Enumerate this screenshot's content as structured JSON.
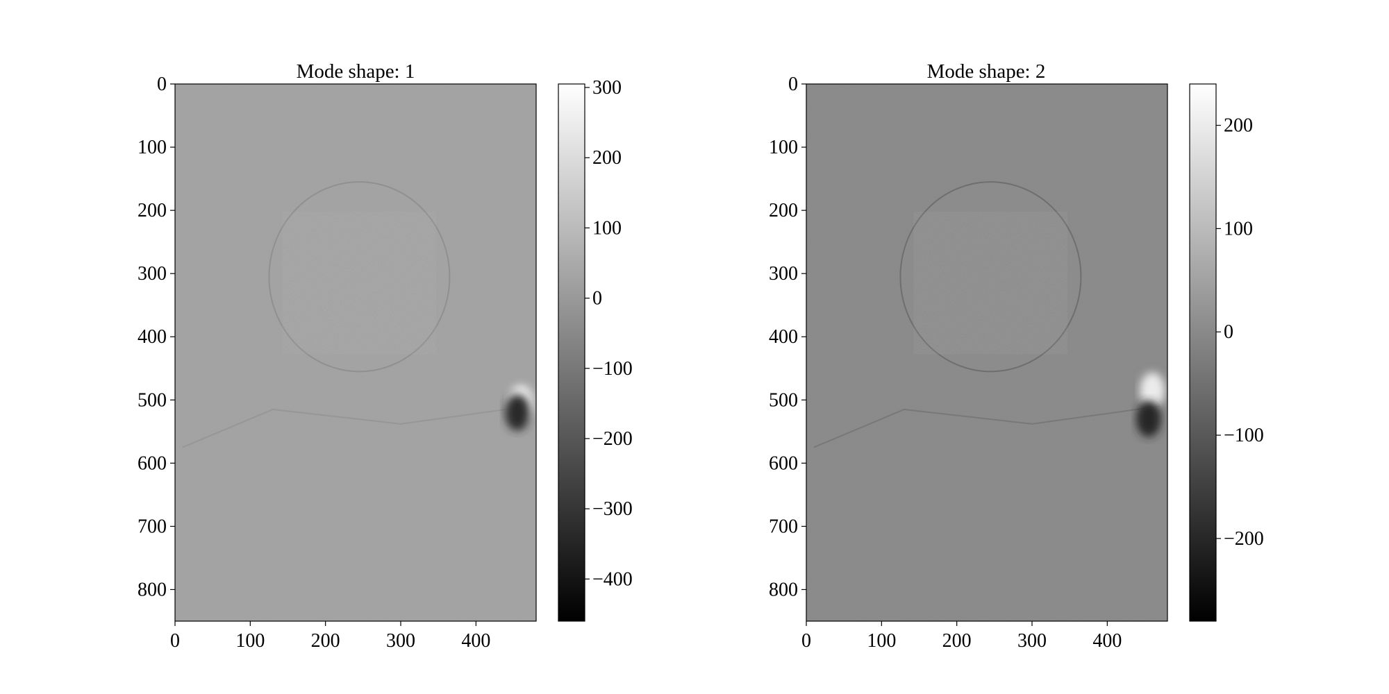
{
  "chart_data": [
    {
      "type": "heatmap",
      "title": "Mode shape: 1",
      "xlabel": "",
      "ylabel": "",
      "xlim": [
        0,
        480
      ],
      "ylim": [
        850,
        0
      ],
      "x_ticks": [
        0,
        100,
        200,
        300,
        400
      ],
      "y_ticks": [
        0,
        100,
        200,
        300,
        400,
        500,
        600,
        700,
        800
      ],
      "colormap": "gray",
      "colorbar": {
        "range": [
          -460,
          305
        ],
        "ticks": [
          300,
          200,
          100,
          0,
          -100,
          -200,
          -300,
          -400
        ],
        "tick_labels": [
          "300",
          "200",
          "100",
          "0",
          "−100",
          "−200",
          "−300",
          "−400"
        ]
      },
      "background_value": 25,
      "features": [
        {
          "kind": "head",
          "cx": 245,
          "cy": 305,
          "rx": 120,
          "ry": 150
        },
        {
          "kind": "shoulder-line",
          "points": [
            [
              10,
              575
            ],
            [
              130,
              515
            ],
            [
              300,
              538
            ],
            [
              470,
              510
            ]
          ]
        },
        {
          "kind": "bright-blob",
          "cx": 460,
          "cy": 505,
          "value": 260
        },
        {
          "kind": "dark-blob",
          "cx": 455,
          "cy": 520,
          "value": -330
        }
      ]
    },
    {
      "type": "heatmap",
      "title": "Mode shape: 2",
      "xlabel": "",
      "ylabel": "",
      "xlim": [
        0,
        480
      ],
      "ylim": [
        850,
        0
      ],
      "x_ticks": [
        0,
        100,
        200,
        300,
        400
      ],
      "y_ticks": [
        0,
        100,
        200,
        300,
        400,
        500,
        600,
        700,
        800
      ],
      "colormap": "gray",
      "colorbar": {
        "range": [
          -280,
          240
        ],
        "ticks": [
          200,
          100,
          0,
          -100,
          -200
        ],
        "tick_labels": [
          "200",
          "100",
          "0",
          "−100",
          "−200"
        ]
      },
      "background_value": 0,
      "features": [
        {
          "kind": "head",
          "cx": 245,
          "cy": 305,
          "rx": 120,
          "ry": 150
        },
        {
          "kind": "shoulder-line",
          "points": [
            [
              10,
              575
            ],
            [
              130,
              515
            ],
            [
              300,
              538
            ],
            [
              470,
              510
            ]
          ]
        },
        {
          "kind": "bright-blob",
          "cx": 460,
          "cy": 485,
          "value": 200
        },
        {
          "kind": "dark-blob",
          "cx": 455,
          "cy": 530,
          "value": -200
        }
      ]
    }
  ]
}
